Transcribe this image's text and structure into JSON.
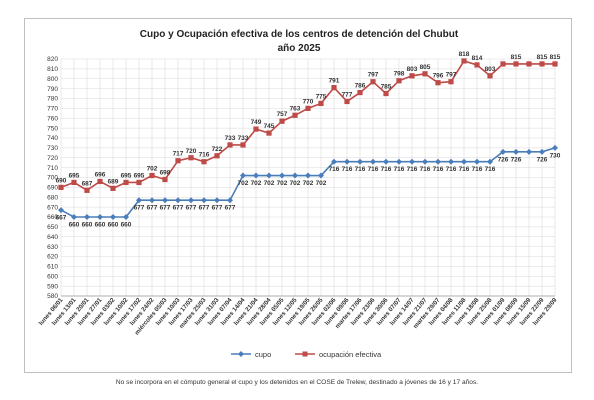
{
  "chart_data": {
    "type": "line",
    "title": "Cupo y Ocupación efectiva de los centros de detención del Chubut",
    "subtitle": "año 2025",
    "xlabel": "",
    "ylabel": "",
    "ylim": [
      580,
      820
    ],
    "yticks": [
      580,
      590,
      600,
      610,
      620,
      630,
      640,
      650,
      660,
      670,
      680,
      690,
      700,
      710,
      720,
      730,
      740,
      750,
      760,
      770,
      780,
      790,
      800,
      810,
      820
    ],
    "grid": true,
    "legend_position": "bottom",
    "categories": [
      "lunes 06/01",
      "lunes 13/01",
      "lunes 20/01",
      "lunes 27/01",
      "lunes 03/02",
      "lunes 10/02",
      "lunes 17/02",
      "lunes 24/02",
      "miércoles 05/03",
      "lunes 10/03",
      "lunes 17/03",
      "martes 25/03",
      "lunes 31/03",
      "lunes 07/04",
      "lunes 14/04",
      "lunes 21/04",
      "lunes 28/04",
      "lunes 05/05",
      "lunes 12/05",
      "lunes 19/05",
      "lunes 26/05",
      "lunes 02/06",
      "lunes 09/06",
      "martes 17/06",
      "lunes 23/06",
      "lunes 30/06",
      "lunes 07/07",
      "lunes 14/07",
      "lunes 21/07",
      "martes 29/07",
      "lunes 04/08",
      "lunes 11/08",
      "lunes 18/08",
      "lunes 25/08",
      "lunes 01/09",
      "lunes 08/09",
      "lunes 15/09",
      "lunes 22/09",
      "lunes 29/09"
    ],
    "series": [
      {
        "name": "cupo",
        "color": "#4a7ebb",
        "marker": "diamond",
        "values": [
          667,
          660,
          660,
          660,
          660,
          660,
          677,
          677,
          677,
          677,
          677,
          677,
          677,
          677,
          702,
          702,
          702,
          702,
          702,
          702,
          702,
          716,
          716,
          716,
          716,
          716,
          716,
          716,
          716,
          716,
          716,
          716,
          716,
          716,
          726,
          726,
          726,
          726,
          730
        ],
        "labels": [
          "667",
          "660",
          "660",
          "660",
          "660",
          "660",
          "677",
          "677",
          "677",
          "677",
          "677",
          "677",
          "677",
          "677",
          "702",
          "702",
          "702",
          "702",
          "702",
          "702",
          "702",
          "716",
          "716",
          "716",
          "716",
          "716",
          "716",
          "716",
          "716",
          "716",
          "716",
          "716",
          "716",
          "716",
          "726",
          "726",
          "",
          "726",
          "730"
        ]
      },
      {
        "name": "ocupación efectiva",
        "color": "#be4b48",
        "marker": "square",
        "values": [
          690,
          695,
          687,
          696,
          689,
          695,
          695,
          702,
          698,
          717,
          720,
          716,
          722,
          733,
          733,
          749,
          745,
          757,
          763,
          770,
          775,
          791,
          777,
          786,
          797,
          785,
          798,
          803,
          805,
          796,
          797,
          818,
          814,
          803,
          815,
          815,
          815,
          815,
          815
        ],
        "labels": [
          "690",
          "695",
          "687",
          "696",
          "689",
          "695",
          "695",
          "702",
          "698",
          "717",
          "720",
          "716",
          "722",
          "733",
          "733",
          "749",
          "745",
          "757",
          "763",
          "770",
          "775",
          "791",
          "777",
          "786",
          "797",
          "785",
          "798",
          "803",
          "805",
          "796",
          "797",
          "818",
          "814",
          "803",
          "",
          "815",
          "",
          "815",
          "815"
        ]
      }
    ]
  },
  "footnote": "No se incorpora en el cómputo general el cupo y los detenidos en el COSE de Trelew, destinado a jóvenes de 16 y 17 años."
}
